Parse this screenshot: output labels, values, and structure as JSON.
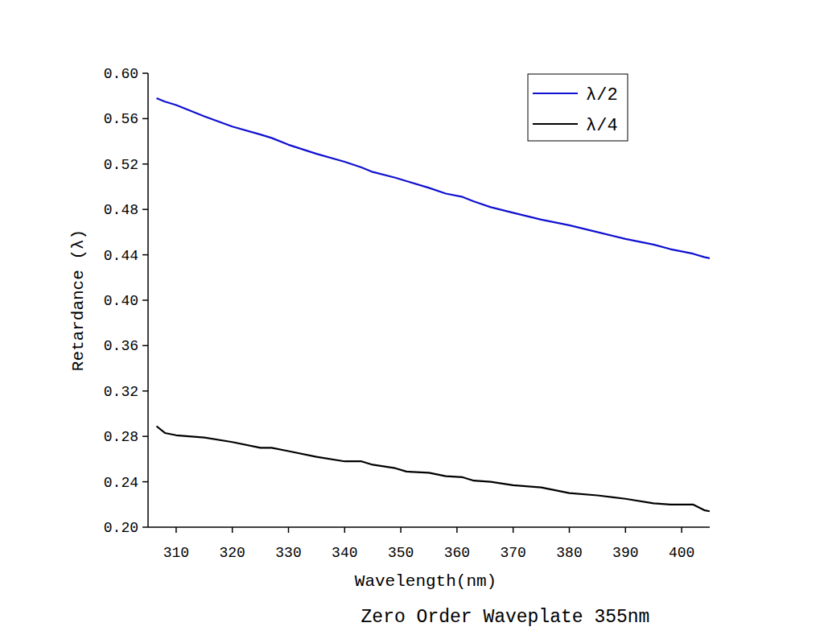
{
  "chart_data": {
    "type": "line",
    "title": "Zero Order Waveplate 355nm",
    "x_label": "Wavelength(nm)",
    "y_label": "Retardance (λ)",
    "x": [
      306.5,
      308,
      310,
      315,
      320,
      325,
      327,
      330,
      335,
      340,
      343,
      345,
      349,
      351,
      355,
      358,
      361,
      363,
      366,
      370,
      375,
      380,
      385,
      390,
      395,
      398,
      402,
      404,
      405
    ],
    "series": [
      {
        "name": "λ/2",
        "color": "#1010d0",
        "line_style": "solid",
        "values": [
          0.578,
          0.575,
          0.572,
          0.562,
          0.553,
          0.546,
          0.543,
          0.537,
          0.529,
          0.522,
          0.517,
          0.513,
          0.508,
          0.505,
          0.499,
          0.494,
          0.491,
          0.487,
          0.482,
          0.477,
          0.471,
          0.466,
          0.46,
          0.454,
          0.449,
          0.445,
          0.441,
          0.438,
          0.437
        ]
      },
      {
        "name": "λ/4",
        "color": "#000000",
        "line_style": "solid",
        "values": [
          0.289,
          0.283,
          0.281,
          0.279,
          0.275,
          0.27,
          0.27,
          0.267,
          0.262,
          0.258,
          0.258,
          0.255,
          0.252,
          0.249,
          0.248,
          0.245,
          0.244,
          0.241,
          0.24,
          0.237,
          0.235,
          0.23,
          0.228,
          0.225,
          0.221,
          0.22,
          0.22,
          0.215,
          0.214
        ]
      }
    ],
    "xlim": [
      305,
      405
    ],
    "xticks": [
      310,
      320,
      330,
      340,
      350,
      360,
      370,
      380,
      390,
      400
    ],
    "ylim": [
      0.2,
      0.6
    ],
    "yticks": [
      {
        "value": 0.2,
        "label": "0.20"
      },
      0.24,
      0.28,
      0.32,
      0.36,
      {
        "value": 0.4,
        "label": "0.40"
      },
      0.44,
      0.48,
      0.52,
      0.56,
      {
        "value": 0.6,
        "label": "0.60"
      }
    ],
    "grid": false,
    "legend": "upper right"
  }
}
